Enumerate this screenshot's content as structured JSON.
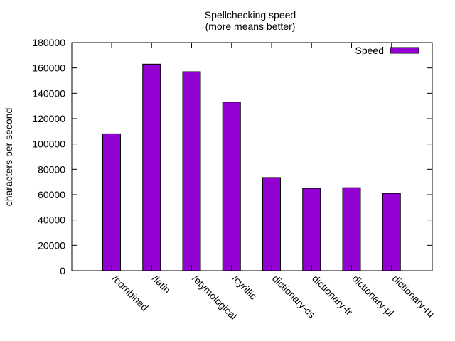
{
  "chart_data": {
    "type": "bar",
    "title": "Spellchecking speed",
    "subtitle": "(more means better)",
    "xlabel": "",
    "ylabel": "characters per second",
    "categories": [
      "/combined",
      "/latin",
      "/etymological",
      "/cyrillic",
      "dictionary-cs",
      "dictionary-fr",
      "dictionary-pl",
      "dictionary-ru"
    ],
    "series": [
      {
        "name": "Speed",
        "color": "#9400d3",
        "values": [
          108000,
          163000,
          157000,
          133000,
          73500,
          65000,
          65500,
          61000
        ]
      }
    ],
    "ylim": [
      0,
      180000
    ],
    "yticks": [
      "0",
      "20000",
      "40000",
      "60000",
      "80000",
      "100000",
      "120000",
      "140000",
      "160000",
      "180000"
    ],
    "legend": "top-right",
    "grid": false
  }
}
